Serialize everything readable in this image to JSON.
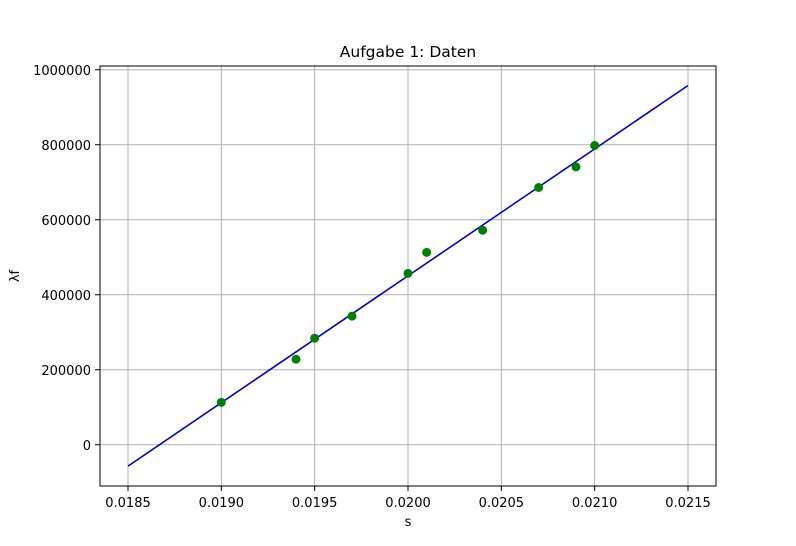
{
  "chart_data": {
    "type": "scatter",
    "title": "Aufgabe 1: Daten",
    "xlabel": "s",
    "ylabel": "λf",
    "xlim": [
      0.01835,
      0.02165
    ],
    "ylim": [
      -110000,
      1010000
    ],
    "grid": true,
    "x_ticks": [
      0.0185,
      0.019,
      0.0195,
      0.02,
      0.0205,
      0.021,
      0.0215
    ],
    "x_tick_labels": [
      "0.0185",
      "0.0190",
      "0.0195",
      "0.0200",
      "0.0205",
      "0.0210",
      "0.0215"
    ],
    "y_ticks": [
      0,
      200000,
      400000,
      600000,
      800000,
      1000000
    ],
    "y_tick_labels": [
      "0",
      "200000",
      "400000",
      "600000",
      "800000",
      "1000000"
    ],
    "colors": {
      "points": "#008000",
      "fit_line": "#0000cd",
      "grid": "#b0b0b0"
    },
    "series": [
      {
        "type": "scatter",
        "x": [
          0.019,
          0.0194,
          0.0195,
          0.0197,
          0.02,
          0.0201,
          0.0204,
          0.0207,
          0.0209,
          0.021
        ],
        "y": [
          113000,
          228000,
          284000,
          343000,
          457000,
          513000,
          572000,
          686000,
          741000,
          798000
        ]
      },
      {
        "type": "line",
        "x": [
          0.0185,
          0.0215
        ],
        "y": [
          -57000,
          958000
        ]
      }
    ]
  }
}
